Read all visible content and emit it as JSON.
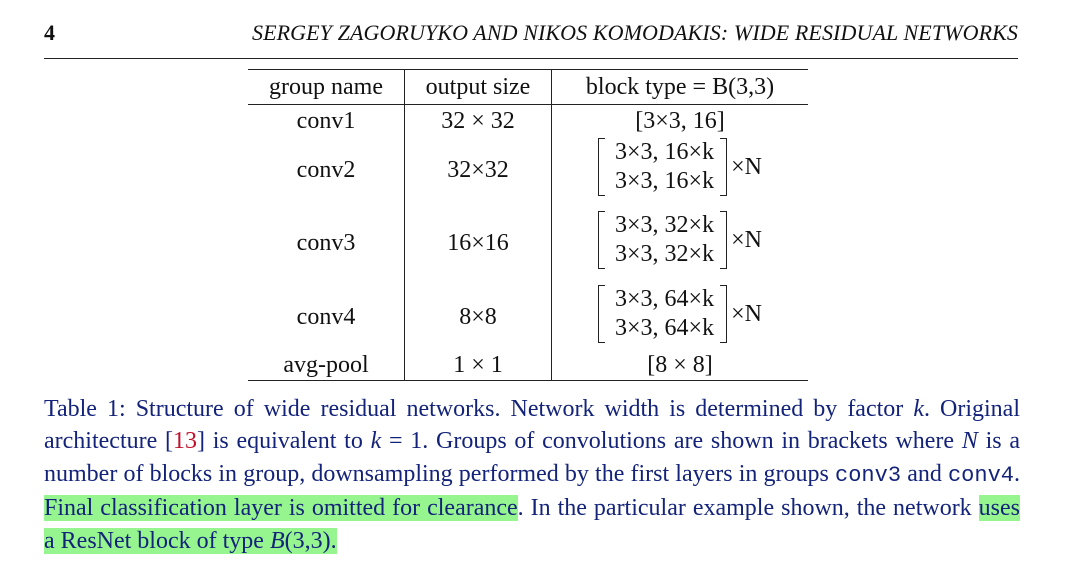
{
  "header": {
    "page_number": "4",
    "running_title": "SERGEY ZAGORUYKO AND NIKOS KOMODAKIS: WIDE RESIDUAL NETWORKS"
  },
  "table": {
    "headers": [
      "group name",
      "output size",
      "block type = B(3,3)"
    ],
    "rows": [
      {
        "group": "conv1",
        "output": "32 × 32",
        "block_lines": [
          "[3×3, 16]"
        ],
        "multiplier": ""
      },
      {
        "group": "conv2",
        "output": "32×32",
        "block_lines": [
          "3×3, 16×k",
          "3×3, 16×k"
        ],
        "multiplier": "×N"
      },
      {
        "group": "conv3",
        "output": "16×16",
        "block_lines": [
          "3×3, 32×k",
          "3×3, 32×k"
        ],
        "multiplier": "×N"
      },
      {
        "group": "conv4",
        "output": "8×8",
        "block_lines": [
          "3×3, 64×k",
          "3×3, 64×k"
        ],
        "multiplier": "×N"
      },
      {
        "group": "avg-pool",
        "output": "1 × 1",
        "block_lines": [
          "[8 × 8]"
        ],
        "multiplier": ""
      }
    ]
  },
  "caption": {
    "p1": "Table 1: Structure of wide residual networks. Network width is determined by factor ",
    "k1": "k",
    "p2": ". Original architecture [",
    "cite": "13",
    "p3": "] is equivalent to ",
    "k2": "k",
    "p4": " = 1. Groups of convolutions are shown in brackets where ",
    "n": "N",
    "p5": " is a number of blocks in group, downsampling performed by the first layers in groups ",
    "code1": "conv3",
    "p6": " and ",
    "code2": "conv4",
    "p7": ". ",
    "hl1": "Final classification layer is omitted for clearance",
    "p8": ". In the particular example shown, the network ",
    "hl2a": "uses a ResNet block of type ",
    "hl2b": "B",
    "hl2c": "(3,3)."
  }
}
